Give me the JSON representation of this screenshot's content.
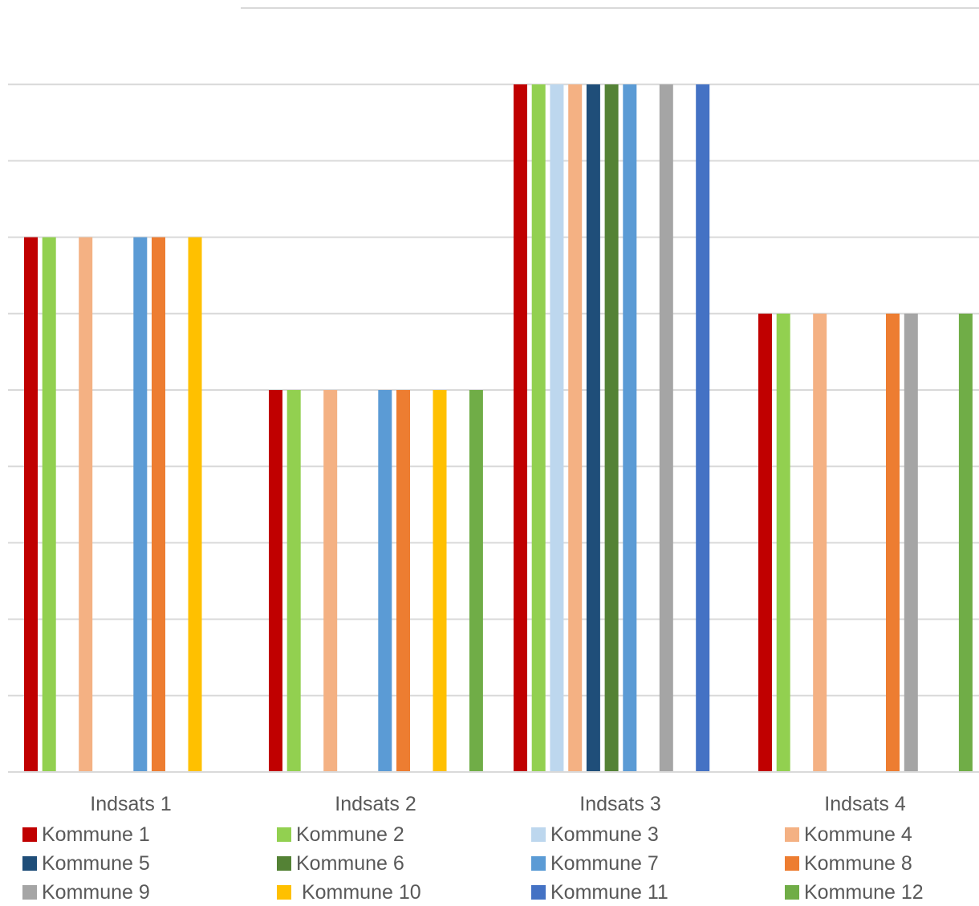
{
  "chart_data": {
    "type": "bar",
    "title": "",
    "xlabel": "",
    "ylabel": "",
    "ylim": [
      0,
      9.5
    ],
    "grid": true,
    "legend_position": "bottom",
    "categories": [
      "Indsats 1",
      "Indsats 2",
      "Indsats 3",
      "Indsats 4"
    ],
    "series": [
      {
        "name": "Kommune 1",
        "color": "#C00000",
        "values": [
          7,
          5,
          9,
          6
        ]
      },
      {
        "name": "Kommune 2",
        "color": "#92D050",
        "values": [
          7,
          5,
          9,
          6
        ]
      },
      {
        "name": "Kommune 3",
        "color": "#BDD7EE",
        "values": [
          0,
          0,
          9,
          0
        ]
      },
      {
        "name": "Kommune 4",
        "color": "#F4B183",
        "values": [
          7,
          5,
          9,
          6
        ]
      },
      {
        "name": "Kommune 5",
        "color": "#1F4E79",
        "values": [
          0,
          0,
          9,
          0
        ]
      },
      {
        "name": "Kommune 6",
        "color": "#548235",
        "values": [
          0,
          0,
          9,
          0
        ]
      },
      {
        "name": "Kommune 7",
        "color": "#5B9BD5",
        "values": [
          7,
          5,
          9,
          0
        ]
      },
      {
        "name": "Kommune 8",
        "color": "#ED7D31",
        "values": [
          7,
          5,
          0,
          6
        ]
      },
      {
        "name": "Kommune 9",
        "color": "#A5A5A5",
        "values": [
          0,
          0,
          9,
          6
        ]
      },
      {
        "name": "Kommune 10",
        "color": "#FFC000",
        "values": [
          7,
          5,
          0,
          0
        ]
      },
      {
        "name": "Kommune 11",
        "color": "#4472C4",
        "values": [
          0,
          0,
          9,
          0
        ]
      },
      {
        "name": "Kommune 12",
        "color": "#70AD47",
        "values": [
          0,
          5,
          0,
          6
        ]
      }
    ]
  },
  "legend": {
    "labels": [
      "Kommune 1",
      "Kommune 2",
      "Kommune 3",
      "Kommune 4",
      "Kommune 5",
      "Kommune 6",
      "Kommune 7",
      "Kommune 8",
      "Kommune 9",
      " Kommune 10",
      "Kommune 11",
      "Kommune 12"
    ]
  }
}
